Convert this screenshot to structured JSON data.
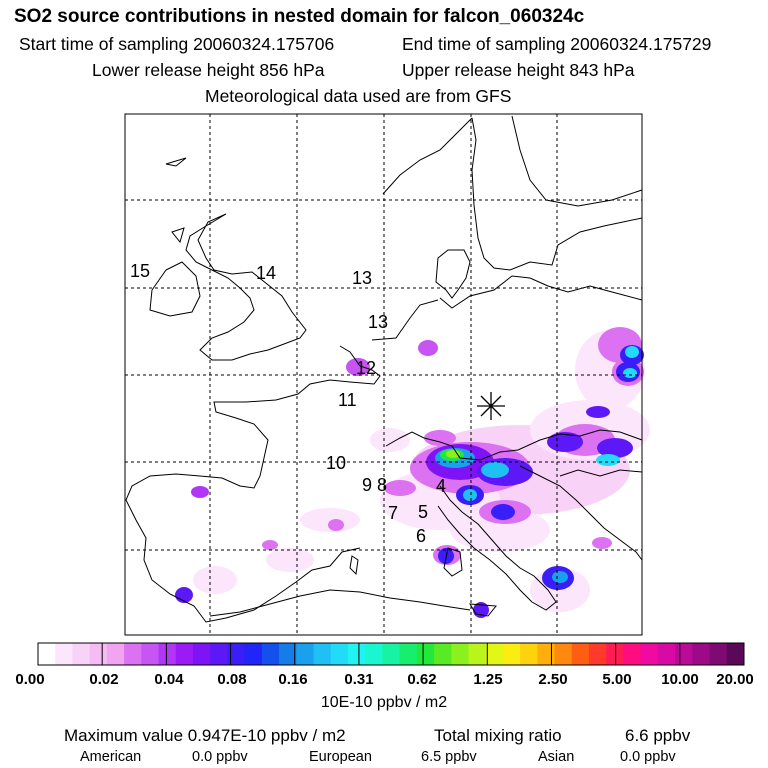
{
  "header": {
    "title": "SO2 source contributions in nested domain for falcon_060324c",
    "start_label": "Start time of sampling 20060324.175706",
    "end_label": "End time of sampling 20060324.175729",
    "lower_label": "Lower release height  856 hPa",
    "upper_label": "Upper release height  843 hPa",
    "met_label": "Meteorological data used are from GFS"
  },
  "map": {
    "trajectory_labels": [
      "15",
      "14",
      "13",
      "13",
      "12",
      "11",
      "10",
      "9",
      "8",
      "7",
      "6",
      "5",
      "4"
    ],
    "colors": {
      "coast": "#000000",
      "grid": "#000000"
    }
  },
  "colorbar": {
    "colors": [
      "#ffffff",
      "#fce6fb",
      "#f9d3f7",
      "#f5bcf3",
      "#f1a4ef",
      "#dc72f2",
      "#c655f4",
      "#b236f5",
      "#9a1bf5",
      "#7e14f5",
      "#5c18f6",
      "#3a1ef7",
      "#2026f8",
      "#1450ee",
      "#147de8",
      "#1aa1ee",
      "#20c0f4",
      "#22dcf7",
      "#20f3f0",
      "#1af7cf",
      "#16f3a2",
      "#18ee6e",
      "#22e83c",
      "#58ea22",
      "#8af01e",
      "#baf51a",
      "#e2f716",
      "#fbec12",
      "#ffd20e",
      "#ffae0c",
      "#ff880e",
      "#ff5e12",
      "#ff3a2a",
      "#ff1c52",
      "#ff0c80",
      "#f00aa2",
      "#d80aa6",
      "#bc0a98",
      "#9c0a88",
      "#7e0a74",
      "#5a0858"
    ],
    "ticks": [
      "0.00",
      "0.02",
      "0.04",
      "0.08",
      "0.16",
      "0.31",
      "0.62",
      "1.25",
      "2.50",
      "5.00",
      "10.00",
      "20.00"
    ],
    "units": "10E-10 ppbv / m2"
  },
  "stats": {
    "max_label": "Maximum value  0.947E-10 ppbv / m2",
    "total_label": "Total mixing ratio",
    "total_value": "6.6 ppbv",
    "american_label": "American",
    "american_value": "0.0 ppbv",
    "european_label": "European",
    "european_value": "6.5 ppbv",
    "asian_label": "Asian",
    "asian_value": "0.0 ppbv"
  }
}
